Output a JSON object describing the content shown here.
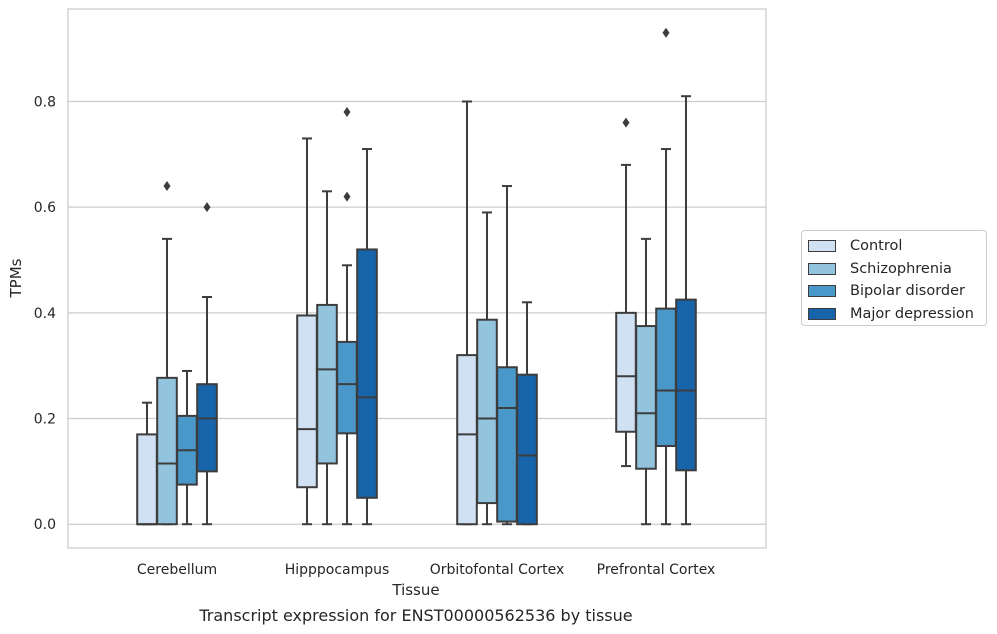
{
  "chart_data": {
    "type": "box",
    "caption": "Transcript expression for ENST00000562536 by tissue",
    "xlabel": "Tissue",
    "ylabel": "TPMs",
    "ylim": [
      -0.045,
      0.975
    ],
    "yticks": [
      0.0,
      0.2,
      0.4,
      0.6,
      0.8
    ],
    "ytick_labels": [
      "0.0",
      "0.2",
      "0.4",
      "0.6",
      "0.8"
    ],
    "grid": "horizontal",
    "legend_position": "right",
    "categories": [
      "Cerebellum",
      "Hipppocampus",
      "Orbitofontal Cortex",
      "Prefrontal Cortex"
    ],
    "series": [
      {
        "name": "Control",
        "color": "#cfe1f2",
        "boxes": [
          {
            "whisker_low": 0.0,
            "q1": 0.0,
            "median": 0.0,
            "q3": 0.17,
            "whisker_high": 0.23,
            "outliers": []
          },
          {
            "whisker_low": 0.0,
            "q1": 0.07,
            "median": 0.18,
            "q3": 0.395,
            "whisker_high": 0.73,
            "outliers": []
          },
          {
            "whisker_low": 0.0,
            "q1": 0.0,
            "median": 0.17,
            "q3": 0.32,
            "whisker_high": 0.8,
            "outliers": []
          },
          {
            "whisker_low": 0.11,
            "q1": 0.175,
            "median": 0.28,
            "q3": 0.4,
            "whisker_high": 0.68,
            "outliers": [
              0.76
            ]
          }
        ]
      },
      {
        "name": "Schizophrenia",
        "color": "#93c4de",
        "boxes": [
          {
            "whisker_low": 0.0,
            "q1": 0.0,
            "median": 0.115,
            "q3": 0.277,
            "whisker_high": 0.54,
            "outliers": [
              0.64
            ]
          },
          {
            "whisker_low": 0.0,
            "q1": 0.115,
            "median": 0.293,
            "q3": 0.415,
            "whisker_high": 0.63,
            "outliers": []
          },
          {
            "whisker_low": 0.0,
            "q1": 0.04,
            "median": 0.2,
            "q3": 0.387,
            "whisker_high": 0.59,
            "outliers": []
          },
          {
            "whisker_low": 0.0,
            "q1": 0.105,
            "median": 0.21,
            "q3": 0.375,
            "whisker_high": 0.54,
            "outliers": []
          }
        ]
      },
      {
        "name": "Bipolar disorder",
        "color": "#4a98c9",
        "boxes": [
          {
            "whisker_low": 0.0,
            "q1": 0.075,
            "median": 0.14,
            "q3": 0.205,
            "whisker_high": 0.29,
            "outliers": []
          },
          {
            "whisker_low": 0.0,
            "q1": 0.172,
            "median": 0.265,
            "q3": 0.345,
            "whisker_high": 0.49,
            "outliers": [
              0.62,
              0.78
            ]
          },
          {
            "whisker_low": 0.0,
            "q1": 0.005,
            "median": 0.22,
            "q3": 0.297,
            "whisker_high": 0.64,
            "outliers": []
          },
          {
            "whisker_low": 0.0,
            "q1": 0.148,
            "median": 0.253,
            "q3": 0.408,
            "whisker_high": 0.71,
            "outliers": [
              0.93
            ]
          }
        ]
      },
      {
        "name": "Major depression",
        "color": "#1764ab",
        "boxes": [
          {
            "whisker_low": 0.0,
            "q1": 0.1,
            "median": 0.2,
            "q3": 0.265,
            "whisker_high": 0.43,
            "outliers": [
              0.6
            ]
          },
          {
            "whisker_low": 0.0,
            "q1": 0.05,
            "median": 0.24,
            "q3": 0.52,
            "whisker_high": 0.71,
            "outliers": []
          },
          {
            "whisker_low": 0.0,
            "q1": 0.0,
            "median": 0.13,
            "q3": 0.283,
            "whisker_high": 0.42,
            "outliers": []
          },
          {
            "whisker_low": 0.0,
            "q1": 0.102,
            "median": 0.253,
            "q3": 0.425,
            "whisker_high": 0.81,
            "outliers": []
          }
        ]
      }
    ]
  }
}
